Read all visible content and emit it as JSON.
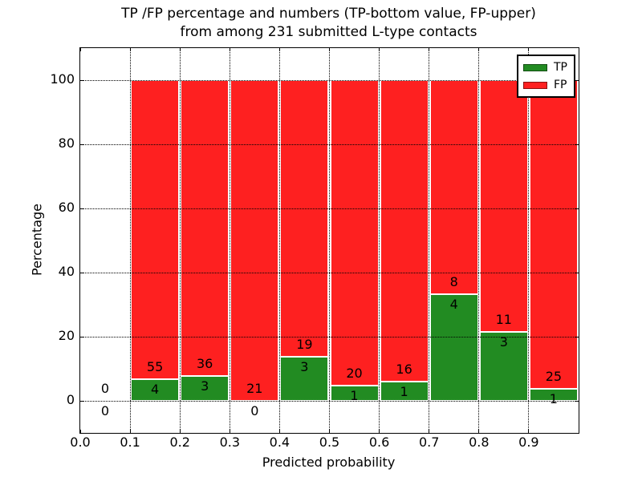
{
  "figure": {
    "title_line1": "TP /FP percentage and numbers (TP-bottom value, FP-upper)",
    "title_line2": "from among 231 submitted L-type contacts",
    "xlabel": "Predicted probability",
    "ylabel": "Percentage"
  },
  "legend": {
    "items": [
      {
        "label": "TP",
        "color": "#228b22"
      },
      {
        "label": "FP",
        "color": "#fe2020"
      }
    ]
  },
  "colors": {
    "tp": "#228b22",
    "fp": "#fe2020",
    "grid": "#000000",
    "spine": "#000000",
    "bar_edge": "#ffffff",
    "background": "#ffffff"
  },
  "chart_data": {
    "type": "bar",
    "stacked": true,
    "normalized": "percent_of_bin_total",
    "title": "TP /FP percentage and numbers (TP-bottom value, FP-upper) from among 231 submitted L-type contacts",
    "xlabel": "Predicted probability",
    "ylabel": "Percentage",
    "xlim": [
      0.0,
      1.0
    ],
    "ylim": [
      -10,
      110
    ],
    "xticks": [
      "0.0",
      "0.1",
      "0.2",
      "0.3",
      "0.4",
      "0.5",
      "0.6",
      "0.7",
      "0.8",
      "0.9"
    ],
    "yticks": [
      0,
      20,
      40,
      60,
      80,
      100
    ],
    "grid": true,
    "legend_position": "upper right",
    "total_contacts": 231,
    "series": [
      {
        "name": "TP",
        "color": "#228b22",
        "counts": [
          0,
          4,
          3,
          0,
          3,
          1,
          1,
          4,
          3,
          1
        ]
      },
      {
        "name": "FP",
        "color": "#fe2020",
        "counts": [
          0,
          55,
          36,
          21,
          19,
          20,
          16,
          8,
          11,
          25
        ]
      }
    ],
    "bins": [
      {
        "x_start": 0.0,
        "x_end": 0.1,
        "tp": 0,
        "fp": 0,
        "tp_pct": null,
        "fp_pct": null
      },
      {
        "x_start": 0.1,
        "x_end": 0.2,
        "tp": 4,
        "fp": 55,
        "tp_pct": 6.78,
        "fp_pct": 93.22
      },
      {
        "x_start": 0.2,
        "x_end": 0.3,
        "tp": 3,
        "fp": 36,
        "tp_pct": 7.69,
        "fp_pct": 92.31
      },
      {
        "x_start": 0.3,
        "x_end": 0.4,
        "tp": 0,
        "fp": 21,
        "tp_pct": 0.0,
        "fp_pct": 100.0
      },
      {
        "x_start": 0.4,
        "x_end": 0.5,
        "tp": 3,
        "fp": 19,
        "tp_pct": 13.64,
        "fp_pct": 86.36
      },
      {
        "x_start": 0.5,
        "x_end": 0.6,
        "tp": 1,
        "fp": 20,
        "tp_pct": 4.76,
        "fp_pct": 95.24
      },
      {
        "x_start": 0.6,
        "x_end": 0.7,
        "tp": 1,
        "fp": 16,
        "tp_pct": 5.88,
        "fp_pct": 94.12
      },
      {
        "x_start": 0.7,
        "x_end": 0.8,
        "tp": 4,
        "fp": 8,
        "tp_pct": 33.33,
        "fp_pct": 66.67
      },
      {
        "x_start": 0.8,
        "x_end": 0.9,
        "tp": 3,
        "fp": 11,
        "tp_pct": 21.43,
        "fp_pct": 78.57
      },
      {
        "x_start": 0.9,
        "x_end": 1.0,
        "tp": 1,
        "fp": 25,
        "tp_pct": 3.85,
        "fp_pct": 96.15
      }
    ]
  }
}
